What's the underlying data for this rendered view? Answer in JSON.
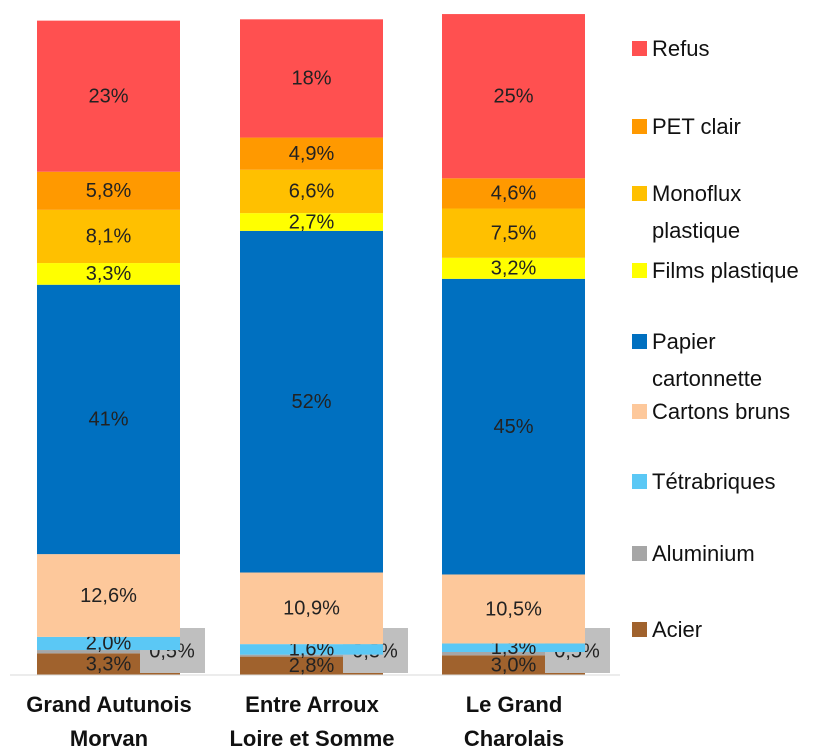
{
  "chart_data": {
    "type": "stacked_bar",
    "categories": [
      "Grand Autunois Morvan",
      "Entre Arroux Loire et Somme",
      "Le Grand Charolais"
    ],
    "ylim": [
      0,
      100
    ],
    "series": [
      {
        "name": "Acier",
        "color": "#a0622d",
        "values": [
          3.3,
          2.8,
          3.0
        ],
        "value_labels": [
          "3,3%",
          "2,8%",
          "3,0%"
        ]
      },
      {
        "name": "Aluminium",
        "color": "#a6a6a6",
        "values": [
          0.5,
          0.3,
          0.5
        ],
        "value_labels": [
          "0,5%",
          "0,3%",
          "0,5%"
        ]
      },
      {
        "name": "Tétrabriques",
        "color": "#5bc8f5",
        "values": [
          2.0,
          1.6,
          1.3
        ],
        "value_labels": [
          "2,0%",
          "1,6%",
          "1,3%"
        ]
      },
      {
        "name": "Cartons bruns",
        "color": "#fdc89b",
        "values": [
          12.6,
          10.9,
          10.5
        ],
        "value_labels": [
          "12,6%",
          "10,9%",
          "10,5%"
        ]
      },
      {
        "name": "Papier cartonnette",
        "color": "#0070c0",
        "values": [
          41,
          52,
          45
        ],
        "value_labels": [
          "41%",
          "52%",
          "45%"
        ]
      },
      {
        "name": "Films plastique",
        "color": "#ffff00",
        "values": [
          3.3,
          2.7,
          3.2
        ],
        "value_labels": [
          "3,3%",
          "2,7%",
          "3,2%"
        ]
      },
      {
        "name": "Monoflux plastique",
        "color": "#ffc000",
        "values": [
          8.1,
          6.6,
          7.5
        ],
        "value_labels": [
          "8,1%",
          "6,6%",
          "7,5%"
        ]
      },
      {
        "name": "PET clair",
        "color": "#ff9900",
        "values": [
          5.8,
          4.9,
          4.6
        ],
        "value_labels": [
          "5,8%",
          "4,9%",
          "4,6%"
        ]
      },
      {
        "name": "Refus",
        "color": "#ff5050",
        "values": [
          23,
          18,
          25
        ],
        "value_labels": [
          "23%",
          "18%",
          "25%"
        ]
      }
    ]
  }
}
